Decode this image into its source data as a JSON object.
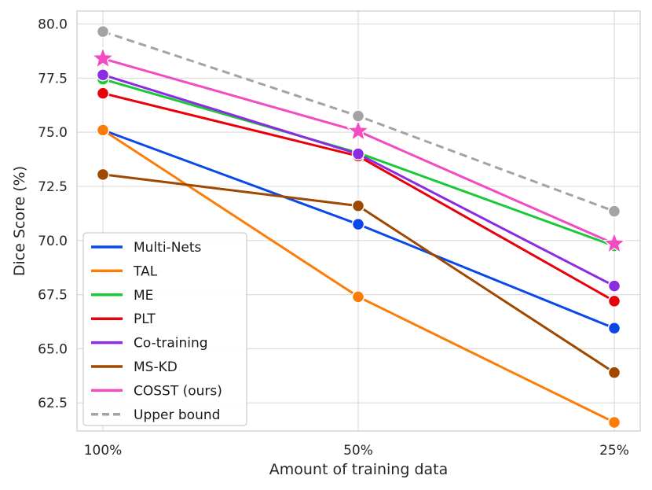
{
  "chart_data": {
    "type": "line",
    "title": "",
    "xlabel": "Amount of training data",
    "ylabel": "Dice Score (%)",
    "categories": [
      "100%",
      "50%",
      "25%"
    ],
    "ylim": [
      61.2,
      80.6
    ],
    "yticks": [
      "62.5",
      "65.0",
      "67.5",
      "70.0",
      "72.5",
      "75.0",
      "77.5",
      "80.0"
    ],
    "grid": true,
    "legend_position": "lower-left",
    "series": [
      {
        "name": "Multi-Nets",
        "color": "#0a48e9",
        "marker": "circle",
        "dashed": false,
        "values": [
          75.1,
          70.75,
          65.95
        ]
      },
      {
        "name": "TAL",
        "color": "#fb7d07",
        "marker": "circle",
        "dashed": false,
        "values": [
          75.1,
          67.4,
          61.6
        ]
      },
      {
        "name": "ME",
        "color": "#1ac938",
        "marker": "circle",
        "dashed": false,
        "values": [
          77.45,
          74.05,
          69.75
        ]
      },
      {
        "name": "PLT",
        "color": "#e8000b",
        "marker": "circle",
        "dashed": false,
        "values": [
          76.8,
          73.9,
          67.2
        ]
      },
      {
        "name": "Co-training",
        "color": "#8b2be2",
        "marker": "circle",
        "dashed": false,
        "values": [
          77.65,
          74.0,
          67.9
        ]
      },
      {
        "name": "MS-KD",
        "color": "#9f4800",
        "marker": "circle",
        "dashed": false,
        "values": [
          73.05,
          71.6,
          63.9
        ]
      },
      {
        "name": "COSST (ours)",
        "color": "#f14cc1",
        "marker": "star",
        "dashed": false,
        "values": [
          78.4,
          75.05,
          69.85
        ]
      },
      {
        "name": "Upper bound",
        "color": "#a3a3a3",
        "marker": "circle",
        "dashed": true,
        "values": [
          79.65,
          75.75,
          71.35
        ]
      }
    ]
  }
}
